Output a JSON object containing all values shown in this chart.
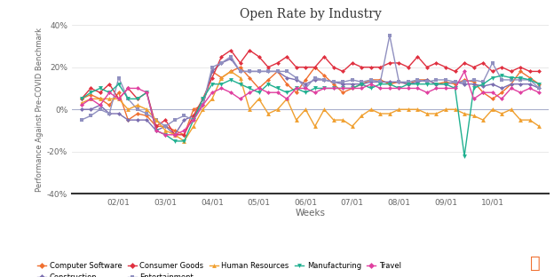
{
  "title": "Open Rate by Industry",
  "xlabel": "Weeks",
  "ylabel": "Performance Against Pre-COVID Benchmark",
  "ylim": [
    -40,
    40
  ],
  "yticks": [
    -40,
    -20,
    0,
    20,
    40
  ],
  "ytick_labels": [
    "-40%",
    "-20%",
    "0%",
    "20%",
    "40%"
  ],
  "xtick_labels": [
    "02/01",
    "03/01",
    "04/01",
    "05/01",
    "06/01",
    "07/01",
    "08/01",
    "09/01",
    "10/01"
  ],
  "n_points": 50,
  "background_color": "#ffffff",
  "zero_line_color": "#aab0cc",
  "grid_color": "#e0e0e0",
  "series": [
    {
      "name": "Computer Software",
      "color": "#f07030",
      "marker": "D",
      "markersize": 2.5,
      "linewidth": 1.0,
      "values": [
        5,
        7,
        5,
        2,
        8,
        -5,
        -2,
        -3,
        -8,
        -8,
        -10,
        -12,
        0,
        2,
        18,
        15,
        18,
        20,
        15,
        10,
        14,
        18,
        12,
        8,
        14,
        20,
        16,
        12,
        8,
        10,
        12,
        14,
        14,
        12,
        13,
        12,
        14,
        14,
        12,
        13,
        12,
        14,
        13,
        8,
        5,
        8,
        12,
        18,
        15,
        12
      ]
    },
    {
      "name": "Construction",
      "color": "#7b6eb0",
      "marker": "D",
      "markersize": 2.5,
      "linewidth": 1.0,
      "values": [
        0,
        0,
        2,
        -2,
        -2,
        -5,
        -5,
        -5,
        -10,
        -8,
        -12,
        -5,
        -3,
        2,
        18,
        22,
        24,
        18,
        18,
        18,
        18,
        18,
        15,
        14,
        12,
        14,
        14,
        13,
        12,
        12,
        12,
        13,
        13,
        13,
        13,
        12,
        13,
        14,
        12,
        12,
        13,
        12,
        12,
        11,
        12,
        10,
        12,
        12,
        12,
        10
      ]
    },
    {
      "name": "Consumer Goods",
      "color": "#e03040",
      "marker": "D",
      "markersize": 2.5,
      "linewidth": 1.0,
      "values": [
        5,
        10,
        8,
        12,
        5,
        10,
        5,
        8,
        -8,
        -5,
        -12,
        -12,
        -3,
        5,
        15,
        25,
        28,
        22,
        28,
        25,
        20,
        22,
        25,
        20,
        20,
        20,
        25,
        20,
        18,
        22,
        20,
        20,
        20,
        22,
        22,
        20,
        25,
        20,
        22,
        20,
        18,
        22,
        20,
        22,
        18,
        20,
        18,
        20,
        18,
        18
      ]
    },
    {
      "name": "Entertainment",
      "color": "#9090c0",
      "marker": "s",
      "markersize": 3.5,
      "linewidth": 1.0,
      "values": [
        -5,
        -3,
        0,
        -2,
        15,
        5,
        0,
        -2,
        -5,
        -8,
        -5,
        -3,
        -5,
        2,
        20,
        22,
        25,
        18,
        18,
        18,
        18,
        18,
        18,
        15,
        10,
        15,
        14,
        13,
        13,
        14,
        13,
        14,
        13,
        35,
        13,
        13,
        14,
        13,
        14,
        14,
        13,
        13,
        14,
        13,
        22,
        14,
        14,
        14,
        14,
        10
      ]
    },
    {
      "name": "Human Resources",
      "color": "#f0a030",
      "marker": "^",
      "markersize": 3.5,
      "linewidth": 1.0,
      "values": [
        3,
        5,
        5,
        5,
        5,
        0,
        2,
        0,
        -5,
        -10,
        -12,
        -15,
        -8,
        0,
        5,
        15,
        18,
        15,
        0,
        5,
        -2,
        0,
        5,
        -5,
        0,
        -8,
        0,
        -5,
        -5,
        -8,
        -3,
        0,
        -2,
        -2,
        0,
        0,
        0,
        -2,
        -2,
        0,
        0,
        -2,
        -3,
        -5,
        0,
        -2,
        0,
        -5,
        -5,
        -8
      ]
    },
    {
      "name": "Manufacturing",
      "color": "#20b090",
      "marker": "v",
      "markersize": 3.5,
      "linewidth": 1.0,
      "values": [
        5,
        8,
        10,
        8,
        12,
        5,
        5,
        8,
        -10,
        -12,
        -15,
        -15,
        -5,
        5,
        12,
        12,
        14,
        12,
        10,
        8,
        12,
        10,
        8,
        10,
        8,
        10,
        10,
        10,
        10,
        10,
        12,
        10,
        12,
        12,
        10,
        12,
        12,
        12,
        12,
        12,
        10,
        -22,
        10,
        12,
        15,
        16,
        15,
        15,
        14,
        12
      ]
    },
    {
      "name": "Travel",
      "color": "#e040a0",
      "marker": "D",
      "markersize": 2.5,
      "linewidth": 1.0,
      "values": [
        2,
        5,
        2,
        8,
        5,
        10,
        10,
        8,
        -10,
        -12,
        -12,
        -10,
        -5,
        2,
        8,
        10,
        8,
        5,
        8,
        10,
        8,
        8,
        5,
        10,
        10,
        8,
        10,
        10,
        10,
        10,
        10,
        12,
        10,
        10,
        10,
        10,
        10,
        8,
        10,
        10,
        10,
        18,
        5,
        8,
        8,
        5,
        10,
        8,
        10,
        8
      ]
    }
  ]
}
